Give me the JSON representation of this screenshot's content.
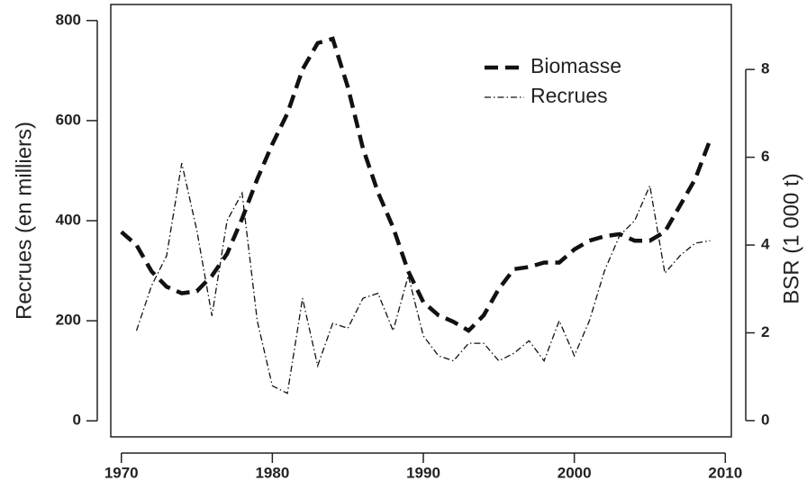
{
  "chart_data": {
    "type": "line",
    "x": [
      1970,
      1971,
      1972,
      1973,
      1974,
      1975,
      1976,
      1977,
      1978,
      1979,
      1980,
      1981,
      1982,
      1983,
      1984,
      1985,
      1986,
      1987,
      1988,
      1989,
      1990,
      1991,
      1992,
      1993,
      1994,
      1995,
      1996,
      1997,
      1998,
      1999,
      2000,
      2001,
      2002,
      2003,
      2004,
      2005,
      2006,
      2007,
      2008,
      2009
    ],
    "series": [
      {
        "name": "Biomasse",
        "color": "#111111",
        "axis": "y2",
        "values": [
          4.3,
          4.0,
          3.4,
          3.05,
          2.9,
          2.95,
          3.3,
          3.8,
          4.6,
          5.5,
          6.3,
          7.0,
          8.0,
          8.6,
          8.7,
          7.6,
          6.2,
          5.2,
          4.4,
          3.4,
          2.7,
          2.4,
          2.25,
          2.05,
          2.4,
          3.0,
          3.45,
          3.5,
          3.6,
          3.6,
          3.9,
          4.1,
          4.2,
          4.25,
          4.1,
          4.1,
          4.3,
          4.9,
          5.5,
          6.4
        ]
      },
      {
        "name": "Recrues",
        "color": "#111111",
        "values": [
          null,
          180,
          270,
          330,
          515,
          380,
          210,
          400,
          455,
          200,
          70,
          55,
          245,
          110,
          195,
          185,
          245,
          255,
          180,
          290,
          170,
          130,
          120,
          155,
          155,
          120,
          135,
          160,
          120,
          200,
          130,
          200,
          300,
          370,
          400,
          470,
          295,
          330,
          355,
          360
        ]
      }
    ],
    "xlim": [
      1969.3,
      2010.4
    ],
    "xticks": [
      1970,
      1980,
      1990,
      2000,
      2010
    ],
    "ylim": [
      -32,
      832
    ],
    "yticks": [
      0,
      200,
      400,
      600,
      800
    ],
    "y2lim": [
      -0.37,
      9.48
    ],
    "y2ticks": [
      0,
      2,
      4,
      6,
      8
    ],
    "ylabel": "Recrues (en milliers)",
    "y2label": "BSR (1 000 t)"
  }
}
